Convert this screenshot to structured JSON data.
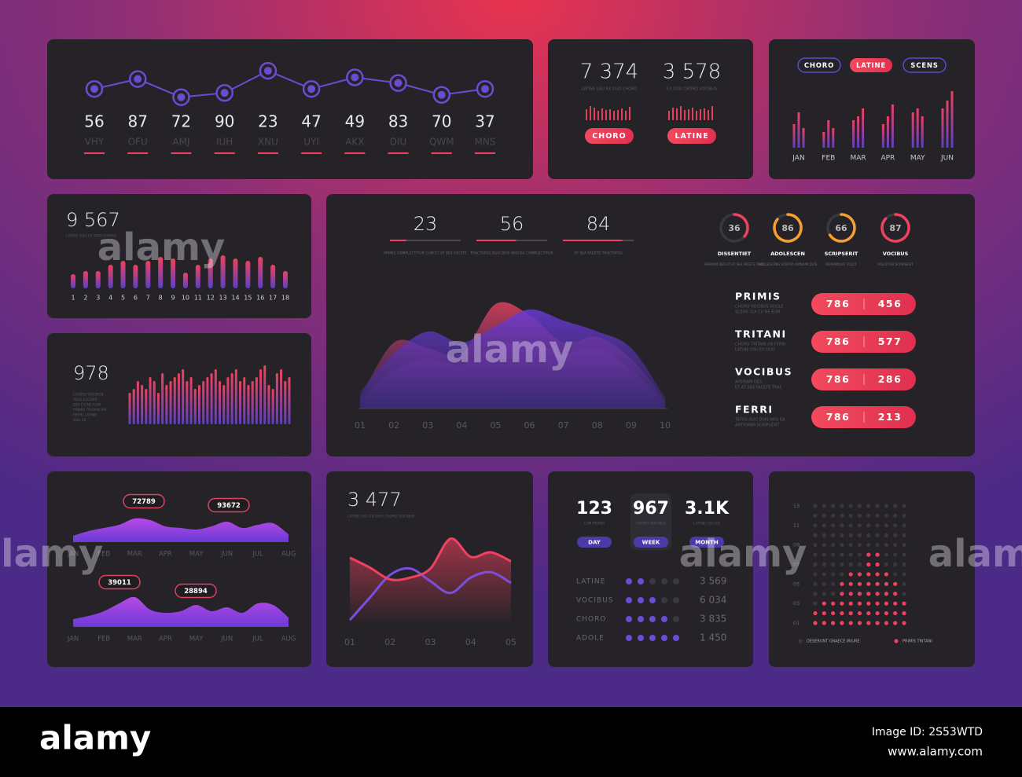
{
  "chart_data": [
    {
      "type": "line",
      "color": "#6b4bd1",
      "values": [
        40,
        70,
        15,
        28,
        95,
        40,
        75,
        58,
        22,
        40
      ],
      "ylim": [
        0,
        100
      ],
      "figures": [
        56,
        87,
        72,
        90,
        23,
        47,
        49,
        83,
        70,
        37
      ],
      "categories": [
        "VHY",
        "OFU",
        "AMJ",
        "IUH",
        "XNU",
        "UYI",
        "AKX",
        "DIU",
        "QWM",
        "MNS"
      ]
    },
    {
      "type": "kpi",
      "ylim": [
        0,
        20
      ],
      "items": [
        {
          "value": "7 374",
          "caption": "LATINE USU EX DUO CHORO",
          "bars": [
            14,
            18,
            16,
            12,
            15,
            13,
            14,
            12,
            13,
            15,
            12,
            17
          ],
          "button": "CHORO"
        },
        {
          "value": "3 578",
          "caption": "EX DUO CHORO VOCIBUS",
          "bars": [
            12,
            16,
            15,
            18,
            13,
            14,
            16,
            12,
            14,
            15,
            13,
            18
          ],
          "button": "LATINE"
        }
      ]
    },
    {
      "type": "groupedbar",
      "tabs": [
        "CHORO",
        "LATINE",
        "SCENS"
      ],
      "active_tab": 1,
      "categories": [
        "JAN",
        "FEB",
        "MAR",
        "APR",
        "MAY",
        "JUN"
      ],
      "ylim": [
        0,
        75
      ],
      "series": [
        {
          "values": [
            30,
            20,
            35,
            30,
            45,
            50
          ]
        },
        {
          "values": [
            45,
            35,
            40,
            40,
            50,
            60
          ]
        },
        {
          "values": [
            25,
            25,
            50,
            55,
            40,
            72
          ]
        }
      ]
    },
    {
      "type": "bar",
      "value": "9 567",
      "captions": [
        "LATINE USU EX DUO CHORO"
      ],
      "ylim": [
        0,
        45
      ],
      "categories": [
        "1",
        "2",
        "3",
        "4",
        "5",
        "6",
        "7",
        "8",
        "9",
        "10",
        "11",
        "12",
        "13",
        "14",
        "15",
        "16",
        "17",
        "18"
      ],
      "values": [
        18,
        22,
        22,
        30,
        35,
        30,
        35,
        40,
        38,
        20,
        30,
        38,
        42,
        38,
        35,
        40,
        30,
        22
      ]
    },
    {
      "type": "bar",
      "value": "978",
      "captions": [
        "CHORO VOCIBUS",
        "ADOLESCENS",
        "QUI CU NE EUM",
        "PRIMIS TRITANI AN",
        "FERRI LATINE",
        "USU EX"
      ],
      "ylim": [
        0,
        80
      ],
      "values": [
        40,
        45,
        55,
        50,
        45,
        60,
        55,
        40,
        65,
        50,
        55,
        60,
        65,
        70,
        55,
        60,
        45,
        50,
        55,
        60,
        65,
        70,
        55,
        50,
        60,
        65,
        70,
        55,
        60,
        50,
        55,
        60,
        70,
        75,
        50,
        45,
        65,
        70,
        55,
        60
      ]
    },
    {
      "type": "overview",
      "xlim": [
        0,
        100
      ],
      "progress": [
        {
          "value": 23,
          "caption": "PRIMIS COMPLECTITUR CUM ET AT SEA FACETE"
        },
        {
          "value": 56,
          "caption": "TRACTATOS DUO DUIS WISI EA COMPLECTITUR"
        },
        {
          "value": 84,
          "caption": "AT SEA FACETE TRACTATOS"
        }
      ],
      "donuts": [
        {
          "value": 36,
          "label": "DISSENTIET",
          "caption": "APERIAM DES ET AT SEA FACETE TRAC",
          "color": "#f0415e"
        },
        {
          "value": 86,
          "label": "ADOLESCEN",
          "caption": "ADOLESCENS SCRIPTA OMNIUM DUIS",
          "color": "#f5a030"
        },
        {
          "value": 66,
          "label": "SCRIPSERIT",
          "caption": "REPRIMIQUE TOLLIT",
          "color": "#f5a030"
        },
        {
          "value": 87,
          "label": "VOCIBUS",
          "caption": "VOLUPTUA SCRIPSERIT",
          "color": "#f0415e"
        }
      ],
      "area": {
        "categories": [
          "01",
          "02",
          "03",
          "04",
          "05",
          "06",
          "07",
          "08",
          "09",
          "10"
        ],
        "ylim": [
          0,
          100
        ],
        "series": [
          {
            "color": "#8a3fd0",
            "values": [
              8,
              35,
              45,
              40,
              55,
              60,
              50,
              55,
              35,
              5
            ]
          },
          {
            "color": "#e0415e",
            "values": [
              10,
              60,
              55,
              50,
              95,
              85,
              60,
              65,
              45,
              8
            ]
          },
          {
            "color": "#6a3ad6",
            "values": [
              15,
              50,
              70,
              60,
              75,
              90,
              80,
              70,
              55,
              10
            ]
          }
        ]
      },
      "list": [
        {
          "title": "PRIMIS",
          "caption": [
            "CHORO VOCIBUS ADOLE",
            "SCENS QUI CU NE EUM"
          ],
          "values": [
            786,
            456
          ]
        },
        {
          "title": "TRITANI",
          "caption": [
            "CHORO TRITANI AN FERRI",
            "LATINE USU EX DUO"
          ],
          "values": [
            786,
            577
          ]
        },
        {
          "title": "VOCIBUS",
          "caption": [
            "APERIAM DES",
            "ET AT SEA FACETE TRAC"
          ],
          "values": [
            786,
            286
          ]
        },
        {
          "title": "FERRI",
          "caption": [
            "TATOS DUO DUIS WISI EA",
            "ANTIOPAM SCRIPSERIT"
          ],
          "values": [
            786,
            213
          ]
        }
      ]
    },
    {
      "type": "area",
      "x": [
        0,
        0.5,
        1,
        1.5,
        2,
        2.5,
        3,
        3.5,
        4,
        4.5,
        5,
        5.5,
        6,
        6.5,
        7
      ],
      "xlim": [
        0,
        7
      ],
      "ylim": [
        0,
        40
      ],
      "xticks": [
        {
          "value": 0,
          "label": "JAN"
        },
        {
          "value": 1,
          "label": "FEB"
        },
        {
          "value": 2,
          "label": "MAR"
        },
        {
          "value": 3,
          "label": "APR"
        },
        {
          "value": 4,
          "label": "MAY"
        },
        {
          "value": 5,
          "label": "JUN"
        },
        {
          "value": 6,
          "label": "JUL"
        },
        {
          "value": 7,
          "label": "AUG"
        }
      ],
      "series": [
        {
          "values": [
            8,
            14,
            18,
            22,
            30,
            28,
            20,
            18,
            16,
            20,
            26,
            18,
            22,
            24,
            10
          ],
          "callouts": [
            "72789",
            "93672"
          ]
        },
        {
          "values": [
            10,
            14,
            20,
            30,
            38,
            22,
            18,
            20,
            28,
            20,
            25,
            18,
            30,
            28,
            12
          ],
          "callouts": [
            "39011",
            "28894"
          ]
        }
      ]
    },
    {
      "type": "multiline",
      "value": "3 477",
      "caption": "LATINE USU EX DUO CHORO VOCIBUS",
      "x": [
        1,
        1.5,
        2,
        2.5,
        3,
        3.5,
        4,
        4.5,
        5
      ],
      "xlim": [
        1,
        5
      ],
      "ylim": [
        0,
        100
      ],
      "xticks": [
        {
          "value": 1,
          "label": "01"
        },
        {
          "value": 2,
          "label": "02"
        },
        {
          "value": 3,
          "label": "03"
        },
        {
          "value": 4,
          "label": "04"
        },
        {
          "value": 5,
          "label": "05"
        }
      ],
      "series": [
        {
          "color": "#f0415e",
          "values": [
            74,
            63,
            50,
            52,
            62,
            95,
            75,
            80,
            70
          ]
        },
        {
          "color": "#7a4fe0",
          "values": [
            5,
            30,
            55,
            62,
            48,
            35,
            52,
            58,
            46
          ]
        }
      ]
    },
    {
      "type": "stats",
      "active": 1,
      "dots_max": 5,
      "kpis": [
        {
          "value": "123",
          "caption": "LUM PRIMIS",
          "button": "DAY"
        },
        {
          "value": "967",
          "caption": "CHORO VOCIBUS",
          "button": "WEEK"
        },
        {
          "value": "3.1K",
          "caption": "LATINE USU ES",
          "button": "MONTH"
        }
      ],
      "rows": [
        {
          "label": "LATINE",
          "dots": 2,
          "value": "3 569"
        },
        {
          "label": "VOCIBUS",
          "dots": 3,
          "value": "6 034"
        },
        {
          "label": "CHORO",
          "dots": 4,
          "value": "3 835"
        },
        {
          "label": "ADOLE",
          "dots": 5,
          "value": "1 450"
        }
      ]
    },
    {
      "type": "dotmatrix",
      "values": [
        2,
        3,
        3,
        5,
        6,
        6,
        8,
        8,
        6,
        5,
        3
      ],
      "ylim": [
        1,
        13
      ],
      "yticks": [
        13,
        11,
        {
          "value": 9,
          "label": "09"
        },
        {
          "value": 7,
          "label": "07"
        },
        {
          "value": 5,
          "label": "05"
        },
        {
          "value": 3,
          "label": "03"
        },
        {
          "value": 1,
          "label": "01"
        }
      ],
      "legend": [
        {
          "name": "DESERUNT GRAECE IRIURE",
          "color": "#3a383d"
        },
        {
          "name": "PRIMIS TRITANI",
          "color": "#f0415e"
        }
      ]
    }
  ],
  "footer": {
    "brand": "alamy",
    "image_id": "Image ID: 2S53WTD",
    "url": "www.alamy.com",
    "watermark": "alamy"
  }
}
